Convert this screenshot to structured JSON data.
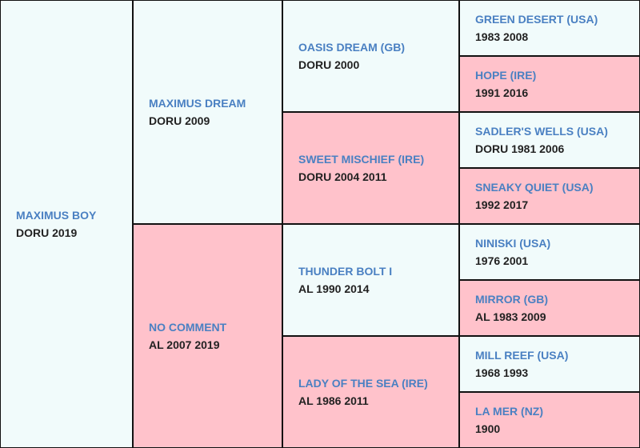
{
  "generations": [
    [
      {
        "name": "MAXIMUS BOY",
        "info": "DORU 2019"
      }
    ],
    [
      {
        "name": "MAXIMUS DREAM",
        "info": "DORU 2009"
      },
      {
        "name": "NO COMMENT",
        "info": "AL 2007 2019"
      }
    ],
    [
      {
        "name": "OASIS DREAM (GB)",
        "info": "DORU 2000"
      },
      {
        "name": "SWEET MISCHIEF (IRE)",
        "info": "DORU 2004 2011"
      },
      {
        "name": "THUNDER BOLT I",
        "info": "AL 1990 2014"
      },
      {
        "name": "LADY OF THE SEA (IRE)",
        "info": "AL 1986 2011"
      }
    ],
    [
      {
        "name": "GREEN DESERT (USA)",
        "info": "1983 2008"
      },
      {
        "name": "HOPE (IRE)",
        "info": "1991 2016"
      },
      {
        "name": "SADLER'S WELLS (USA)",
        "info": "DORU 1981 2006"
      },
      {
        "name": "SNEAKY QUIET (USA)",
        "info": "1992 2017"
      },
      {
        "name": "NINISKI (USA)",
        "info": "1976 2001"
      },
      {
        "name": "MIRROR (GB)",
        "info": "AL 1983 2009"
      },
      {
        "name": "MILL REEF (USA)",
        "info": "1968 1993"
      },
      {
        "name": "LA MER (NZ)",
        "info": "1900"
      }
    ]
  ]
}
